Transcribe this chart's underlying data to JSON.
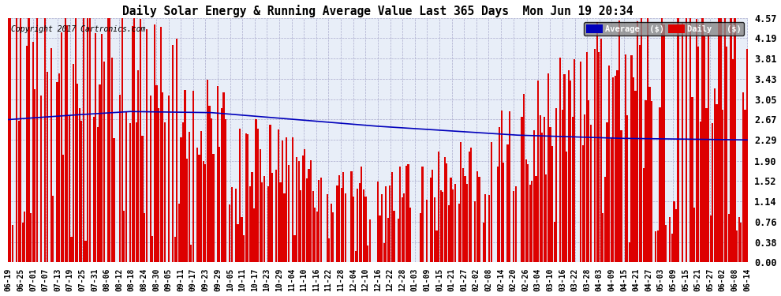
{
  "title": "Daily Solar Energy & Running Average Value Last 365 Days  Mon Jun 19 20:34",
  "copyright": "Copyright 2017 Cartronics.com",
  "legend_labels": [
    "Average  ($)",
    "Daily   ($)"
  ],
  "legend_colors": [
    "#0000bb",
    "#dd0000"
  ],
  "bar_color": "#dd0000",
  "avg_color": "#0000bb",
  "background_color": "#ffffff",
  "plot_bg_color": "#e8eef8",
  "grid_color": "#aaaacc",
  "ylim": [
    0.0,
    4.57
  ],
  "yticks": [
    0.0,
    0.38,
    0.76,
    1.14,
    1.52,
    1.9,
    2.29,
    2.67,
    3.05,
    3.43,
    3.81,
    4.19,
    4.57
  ],
  "num_bars": 365,
  "seed": 42,
  "tick_labels": [
    "06-19",
    "06-25",
    "07-01",
    "07-07",
    "07-13",
    "07-19",
    "07-25",
    "07-31",
    "08-06",
    "08-12",
    "08-18",
    "08-24",
    "08-30",
    "09-05",
    "09-11",
    "09-17",
    "09-23",
    "09-29",
    "10-05",
    "10-11",
    "10-17",
    "10-23",
    "10-29",
    "11-04",
    "11-10",
    "11-16",
    "11-22",
    "11-28",
    "12-04",
    "12-10",
    "12-16",
    "12-22",
    "12-28",
    "01-03",
    "01-09",
    "01-15",
    "01-21",
    "01-27",
    "02-02",
    "02-08",
    "02-14",
    "02-20",
    "02-26",
    "03-04",
    "03-10",
    "03-16",
    "03-22",
    "03-28",
    "04-03",
    "04-09",
    "04-15",
    "04-21",
    "04-27",
    "05-03",
    "05-09",
    "05-15",
    "05-21",
    "05-27",
    "06-02",
    "06-08",
    "06-14"
  ]
}
